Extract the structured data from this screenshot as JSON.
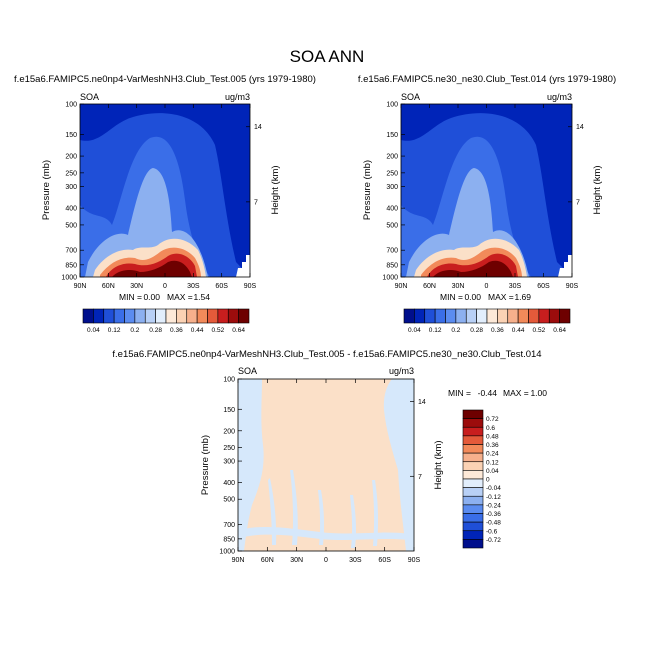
{
  "main_title": "SOA ANN",
  "colors": {
    "deep_navy": "#000f8c",
    "navy": "#0024b8",
    "blue": "#1f4fd8",
    "mid_blue": "#3a6ee8",
    "light_blue": "#8cb0f0",
    "pale_blue": "#d6e8fb",
    "pale_peach": "#fbe0c8",
    "orange": "#f28a5a",
    "red": "#c81e1e",
    "dark_red": "#6e0000"
  },
  "chart_data": [
    {
      "type": "heatmap",
      "title": "f.e15a6.FAMIPC5.ne0np4-VarMeshNH3.Club_Test.005 (yrs 1979-1980)",
      "variable_label": "SOA",
      "units_label": "ug/m3",
      "ylabel": "Pressure (mb)",
      "y2label": "Height (km)",
      "x_ticks": [
        "90N",
        "60N",
        "30N",
        "0",
        "30S",
        "60S",
        "90S"
      ],
      "y_ticks": [
        "100",
        "150",
        "200",
        "250",
        "300",
        "400",
        "500",
        "700",
        "850",
        "1000"
      ],
      "y2_ticks": [
        "14",
        "7"
      ],
      "min_label": "MIN =",
      "min_value": "0.00",
      "max_label": "MAX =",
      "max_value": "1.54",
      "colorbar_labels": [
        "0.04",
        "0.12",
        "0.2",
        "0.28",
        "0.36",
        "0.44",
        "0.52",
        "0.64"
      ]
    },
    {
      "type": "heatmap",
      "title": "f.e15a6.FAMIPC5.ne30_ne30.Club_Test.014 (yrs 1979-1980)",
      "variable_label": "SOA",
      "units_label": "ug/m3",
      "ylabel": "Pressure (mb)",
      "y2label": "Height (km)",
      "x_ticks": [
        "90N",
        "60N",
        "30N",
        "0",
        "30S",
        "60S",
        "90S"
      ],
      "y_ticks": [
        "100",
        "150",
        "200",
        "250",
        "300",
        "400",
        "500",
        "700",
        "850",
        "1000"
      ],
      "y2_ticks": [
        "14",
        "7"
      ],
      "min_label": "MIN =",
      "min_value": "0.00",
      "max_label": "MAX =",
      "max_value": "1.69",
      "colorbar_labels": [
        "0.04",
        "0.12",
        "0.2",
        "0.28",
        "0.36",
        "0.44",
        "0.52",
        "0.64"
      ]
    },
    {
      "type": "heatmap",
      "title": "f.e15a6.FAMIPC5.ne0np4-VarMeshNH3.Club_Test.005 - f.e15a6.FAMIPC5.ne30_ne30.Club_Test.014",
      "variable_label": "SOA",
      "units_label": "ug/m3",
      "ylabel": "Pressure (mb)",
      "y2label": "Height (km)",
      "x_ticks": [
        "90N",
        "60N",
        "30N",
        "0",
        "30S",
        "60S",
        "90S"
      ],
      "y_ticks": [
        "100",
        "150",
        "200",
        "250",
        "300",
        "400",
        "500",
        "700",
        "850",
        "1000"
      ],
      "y2_ticks": [
        "14",
        "7"
      ],
      "min_label": "MIN =",
      "min_value": "-0.44",
      "max_label": "MAX =",
      "max_value": "1.00",
      "colorbar_labels": [
        "0.72",
        "0.6",
        "0.48",
        "0.36",
        "0.24",
        "0.12",
        "0.04",
        "0",
        "-0.04",
        "-0.12",
        "-0.24",
        "-0.36",
        "-0.48",
        "-0.6",
        "-0.72"
      ]
    }
  ]
}
